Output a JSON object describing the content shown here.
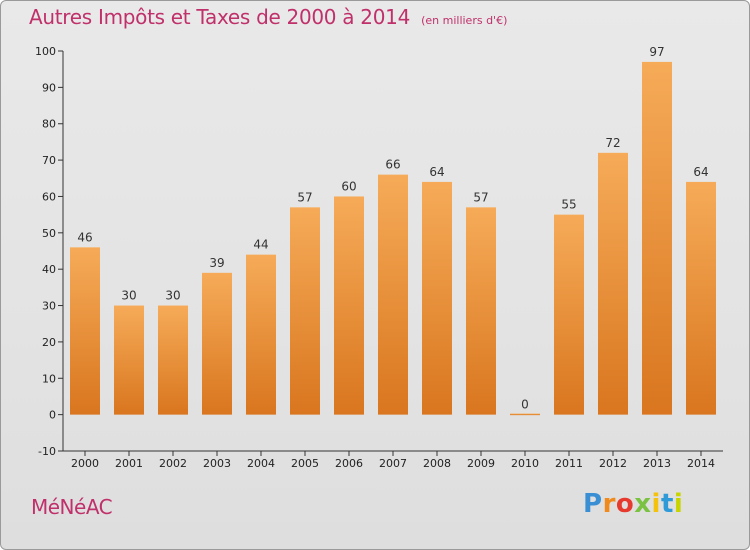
{
  "chart_data": {
    "type": "bar",
    "title": "Autres Impôts et Taxes de 2000 à 2014",
    "subtitle": "(en milliers d'€)",
    "categories": [
      "2000",
      "2001",
      "2002",
      "2003",
      "2004",
      "2005",
      "2006",
      "2007",
      "2008",
      "2009",
      "2010",
      "2011",
      "2012",
      "2013",
      "2014"
    ],
    "values": [
      46,
      30,
      30,
      39,
      44,
      57,
      60,
      66,
      64,
      57,
      0,
      55,
      72,
      97,
      64
    ],
    "ylim": [
      -10,
      100
    ],
    "yticks": [
      -10,
      0,
      10,
      20,
      30,
      40,
      50,
      60,
      70,
      80,
      90,
      100
    ],
    "grid": false,
    "bar_color": "#f0a050"
  },
  "commune": "MéNéAC",
  "brand": {
    "letters": [
      "P",
      "r",
      "o",
      "x",
      "i",
      "t",
      "i"
    ],
    "colors": [
      "#3a8fd4",
      "#f08a1c",
      "#e63a2e",
      "#7cc242",
      "#f4c20d",
      "#2f9ad8",
      "#c8d400"
    ]
  }
}
